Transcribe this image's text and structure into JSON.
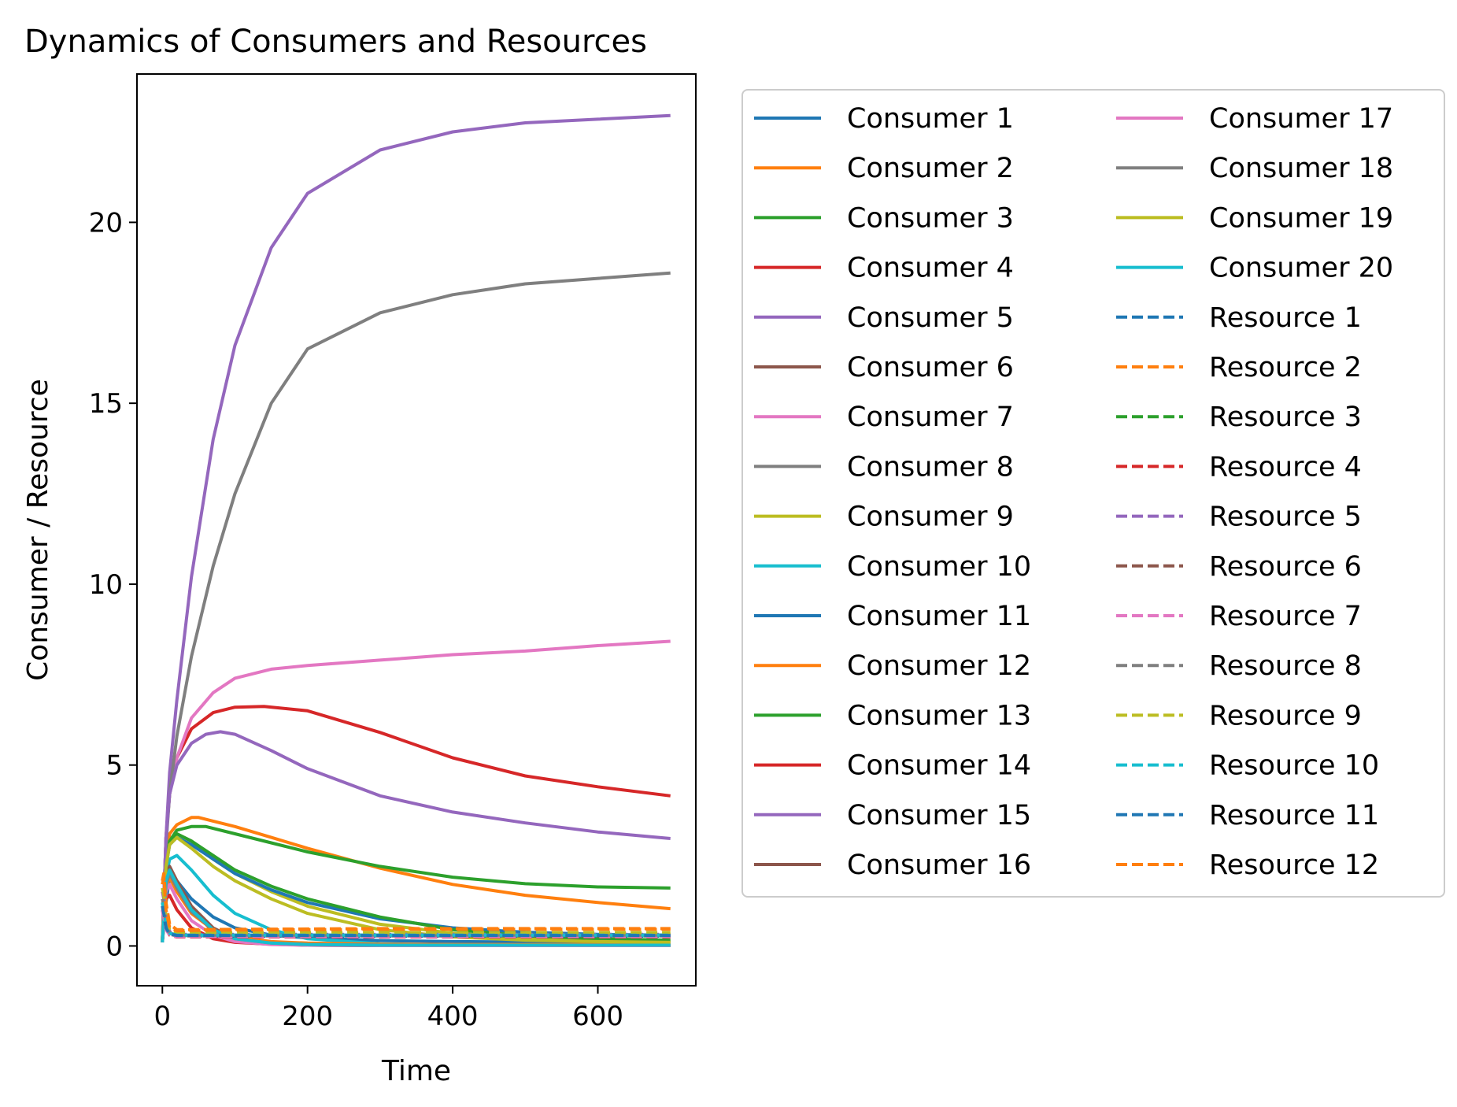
{
  "chart_data": {
    "type": "line",
    "title": "Dynamics of Consumers and Resources",
    "xlabel": "Time",
    "ylabel": "Consumer / Resource",
    "xlim": [
      -35,
      735
    ],
    "ylim": [
      -1.1,
      24.1
    ],
    "xticks": [
      0,
      200,
      400,
      600
    ],
    "yticks": [
      0,
      5,
      10,
      15,
      20
    ],
    "grid": false,
    "legend_position": "outside-right",
    "legend_columns": 2,
    "series": [
      {
        "name": "Consumer 1",
        "color": "#1f77b4",
        "style": "solid",
        "x": [
          0,
          5,
          10,
          20,
          40,
          70,
          100,
          150,
          200,
          300,
          400,
          500,
          600,
          700
        ],
        "y": [
          0.15,
          1.2,
          1.9,
          1.8,
          1.3,
          0.8,
          0.5,
          0.3,
          0.22,
          0.15,
          0.12,
          0.11,
          0.1,
          0.1
        ]
      },
      {
        "name": "Consumer 2",
        "color": "#ff7f0e",
        "style": "solid",
        "x": [
          0,
          5,
          10,
          20,
          40,
          50,
          70,
          100,
          150,
          200,
          300,
          400,
          500,
          600,
          700
        ],
        "y": [
          0.2,
          2.5,
          3.1,
          3.35,
          3.55,
          3.55,
          3.45,
          3.3,
          3.0,
          2.7,
          2.15,
          1.7,
          1.4,
          1.2,
          1.03
        ]
      },
      {
        "name": "Consumer 3",
        "color": "#2ca02c",
        "style": "solid",
        "x": [
          0,
          5,
          10,
          20,
          40,
          60,
          100,
          150,
          200,
          300,
          400,
          500,
          600,
          700
        ],
        "y": [
          0.2,
          2.3,
          2.9,
          3.2,
          3.3,
          3.3,
          3.1,
          2.85,
          2.6,
          2.2,
          1.9,
          1.72,
          1.63,
          1.6
        ]
      },
      {
        "name": "Consumer 4",
        "color": "#d62728",
        "style": "solid",
        "x": [
          0,
          5,
          10,
          20,
          40,
          70,
          100,
          140,
          200,
          300,
          400,
          500,
          600,
          700
        ],
        "y": [
          0.2,
          3.0,
          4.2,
          5.2,
          6.0,
          6.45,
          6.6,
          6.62,
          6.5,
          5.9,
          5.2,
          4.7,
          4.4,
          4.15
        ]
      },
      {
        "name": "Consumer 5",
        "color": "#9467bd",
        "style": "solid",
        "x": [
          0,
          5,
          10,
          20,
          40,
          70,
          100,
          150,
          200,
          300,
          400,
          500,
          600,
          700
        ],
        "y": [
          0.2,
          3.0,
          4.8,
          6.8,
          10.2,
          14.0,
          16.6,
          19.3,
          20.8,
          22.0,
          22.5,
          22.75,
          22.85,
          22.95
        ]
      },
      {
        "name": "Consumer 6",
        "color": "#8c564b",
        "style": "solid",
        "x": [
          0,
          5,
          10,
          20,
          40,
          70,
          100,
          150,
          200,
          300,
          400,
          500,
          600,
          700
        ],
        "y": [
          0.1,
          1.8,
          2.1,
          1.7,
          1.0,
          0.4,
          0.15,
          0.05,
          0.02,
          0.01,
          0.01,
          0.01,
          0.01,
          0.01
        ]
      },
      {
        "name": "Consumer 7",
        "color": "#e377c2",
        "style": "solid",
        "x": [
          0,
          5,
          10,
          20,
          40,
          70,
          100,
          150,
          200,
          300,
          400,
          500,
          600,
          700
        ],
        "y": [
          0.15,
          3.0,
          4.2,
          5.2,
          6.3,
          7.0,
          7.4,
          7.65,
          7.75,
          7.9,
          8.05,
          8.15,
          8.3,
          8.42
        ]
      },
      {
        "name": "Consumer 8",
        "color": "#7f7f7f",
        "style": "solid",
        "x": [
          0,
          5,
          10,
          20,
          40,
          70,
          100,
          150,
          200,
          300,
          400,
          500,
          600,
          700
        ],
        "y": [
          0.15,
          2.8,
          4.2,
          5.8,
          8.0,
          10.5,
          12.5,
          15.0,
          16.5,
          17.5,
          18.0,
          18.3,
          18.45,
          18.6
        ]
      },
      {
        "name": "Consumer 9",
        "color": "#bcbd22",
        "style": "solid",
        "x": [
          0,
          5,
          10,
          20,
          40,
          70,
          100,
          150,
          200,
          300,
          400,
          500,
          600,
          700
        ],
        "y": [
          0.15,
          2.3,
          2.9,
          3.1,
          2.9,
          2.4,
          2.0,
          1.5,
          1.1,
          0.6,
          0.35,
          0.22,
          0.16,
          0.13
        ]
      },
      {
        "name": "Consumer 10",
        "color": "#17becf",
        "style": "solid",
        "x": [
          0,
          5,
          10,
          20,
          40,
          70,
          100,
          150,
          200,
          300,
          400,
          500,
          600,
          700
        ],
        "y": [
          0.1,
          1.9,
          2.4,
          2.5,
          2.1,
          1.4,
          0.9,
          0.45,
          0.2,
          0.06,
          0.03,
          0.02,
          0.02,
          0.02
        ]
      },
      {
        "name": "Consumer 11",
        "color": "#1f77b4",
        "style": "solid",
        "x": [
          0,
          5,
          10,
          20,
          40,
          70,
          100,
          150,
          200,
          300,
          400,
          500,
          600,
          700
        ],
        "y": [
          0.15,
          2.2,
          2.8,
          3.0,
          2.8,
          2.4,
          2.0,
          1.55,
          1.2,
          0.75,
          0.5,
          0.38,
          0.32,
          0.3
        ]
      },
      {
        "name": "Consumer 12",
        "color": "#ff7f0e",
        "style": "solid",
        "x": [
          0,
          5,
          10,
          20,
          40,
          70,
          100,
          150,
          200,
          300,
          400,
          500,
          600,
          700
        ],
        "y": [
          0.1,
          1.6,
          1.9,
          1.5,
          0.9,
          0.45,
          0.25,
          0.12,
          0.08,
          0.05,
          0.04,
          0.04,
          0.04,
          0.04
        ]
      },
      {
        "name": "Consumer 13",
        "color": "#2ca02c",
        "style": "solid",
        "x": [
          0,
          5,
          10,
          20,
          40,
          70,
          100,
          150,
          200,
          300,
          400,
          500,
          600,
          700
        ],
        "y": [
          0.15,
          2.3,
          2.9,
          3.1,
          2.9,
          2.5,
          2.1,
          1.65,
          1.3,
          0.8,
          0.45,
          0.28,
          0.2,
          0.16
        ]
      },
      {
        "name": "Consumer 14",
        "color": "#d62728",
        "style": "solid",
        "x": [
          0,
          5,
          10,
          20,
          40,
          70,
          100,
          150,
          200,
          300,
          400,
          500,
          600,
          700
        ],
        "y": [
          0.1,
          1.3,
          1.4,
          1.0,
          0.5,
          0.2,
          0.1,
          0.05,
          0.03,
          0.02,
          0.02,
          0.02,
          0.02,
          0.02
        ]
      },
      {
        "name": "Consumer 15",
        "color": "#9467bd",
        "style": "solid",
        "x": [
          0,
          5,
          10,
          20,
          40,
          60,
          80,
          100,
          150,
          200,
          300,
          400,
          500,
          600,
          700
        ],
        "y": [
          0.2,
          3.0,
          4.2,
          5.0,
          5.6,
          5.85,
          5.92,
          5.85,
          5.4,
          4.9,
          4.15,
          3.7,
          3.4,
          3.15,
          2.97
        ]
      },
      {
        "name": "Consumer 16",
        "color": "#8c564b",
        "style": "solid",
        "x": [
          0,
          5,
          10,
          20,
          40,
          70,
          100,
          150,
          200,
          300,
          400,
          500,
          600,
          700
        ],
        "y": [
          0.1,
          1.9,
          2.2,
          1.8,
          1.1,
          0.5,
          0.2,
          0.06,
          0.02,
          0.01,
          0.01,
          0.01,
          0.01,
          0.01
        ]
      },
      {
        "name": "Consumer 17",
        "color": "#e377c2",
        "style": "solid",
        "x": [
          0,
          5,
          10,
          20,
          40,
          70,
          100,
          150,
          200,
          300,
          400,
          500,
          600,
          700
        ],
        "y": [
          0.1,
          1.5,
          1.7,
          1.3,
          0.7,
          0.3,
          0.12,
          0.04,
          0.02,
          0.01,
          0.01,
          0.01,
          0.01,
          0.01
        ]
      },
      {
        "name": "Consumer 18",
        "color": "#7f7f7f",
        "style": "solid",
        "x": [
          0,
          5,
          10,
          20,
          40,
          70,
          100,
          150,
          200,
          300,
          400,
          500,
          600,
          700
        ],
        "y": [
          0.1,
          1.7,
          2.0,
          1.6,
          0.95,
          0.45,
          0.2,
          0.08,
          0.04,
          0.02,
          0.02,
          0.02,
          0.02,
          0.02
        ]
      },
      {
        "name": "Consumer 19",
        "color": "#bcbd22",
        "style": "solid",
        "x": [
          0,
          5,
          10,
          20,
          40,
          70,
          100,
          150,
          200,
          300,
          400,
          500,
          600,
          700
        ],
        "y": [
          0.15,
          2.2,
          2.8,
          3.0,
          2.7,
          2.2,
          1.8,
          1.3,
          0.9,
          0.45,
          0.25,
          0.16,
          0.12,
          0.1
        ]
      },
      {
        "name": "Consumer 20",
        "color": "#17becf",
        "style": "solid",
        "x": [
          0,
          5,
          10,
          20,
          40,
          70,
          100,
          150,
          200,
          300,
          400,
          500,
          600,
          700
        ],
        "y": [
          0.1,
          1.8,
          2.1,
          1.7,
          1.0,
          0.45,
          0.2,
          0.08,
          0.04,
          0.02,
          0.02,
          0.02,
          0.02,
          0.02
        ]
      },
      {
        "name": "Resource 1",
        "color": "#1f77b4",
        "style": "dashed",
        "x": [
          0,
          2,
          5,
          10,
          20,
          40,
          100,
          200,
          300,
          400,
          500,
          600,
          700
        ],
        "y": [
          1.0,
          0.8,
          0.5,
          0.35,
          0.3,
          0.28,
          0.27,
          0.27,
          0.27,
          0.27,
          0.27,
          0.27,
          0.27
        ]
      },
      {
        "name": "Resource 2",
        "color": "#ff7f0e",
        "style": "dashed",
        "x": [
          0,
          2,
          5,
          10,
          20,
          40,
          100,
          200,
          300,
          400,
          500,
          600,
          700
        ],
        "y": [
          1.8,
          2.0,
          1.2,
          0.6,
          0.45,
          0.45,
          0.46,
          0.47,
          0.48,
          0.48,
          0.48,
          0.48,
          0.48
        ]
      },
      {
        "name": "Resource 3",
        "color": "#2ca02c",
        "style": "dashed",
        "x": [
          0,
          2,
          5,
          10,
          20,
          40,
          100,
          200,
          300,
          400,
          500,
          600,
          700
        ],
        "y": [
          1.2,
          1.0,
          0.6,
          0.35,
          0.3,
          0.3,
          0.3,
          0.3,
          0.3,
          0.3,
          0.3,
          0.3,
          0.3
        ]
      },
      {
        "name": "Resource 4",
        "color": "#d62728",
        "style": "dashed",
        "x": [
          0,
          2,
          5,
          10,
          20,
          40,
          100,
          200,
          300,
          400,
          500,
          600,
          700
        ],
        "y": [
          1.0,
          0.8,
          0.5,
          0.3,
          0.25,
          0.25,
          0.25,
          0.25,
          0.25,
          0.25,
          0.25,
          0.25,
          0.25
        ]
      },
      {
        "name": "Resource 5",
        "color": "#9467bd",
        "style": "dashed",
        "x": [
          0,
          2,
          5,
          10,
          20,
          40,
          100,
          200,
          300,
          400,
          500,
          600,
          700
        ],
        "y": [
          1.5,
          1.3,
          0.7,
          0.4,
          0.32,
          0.32,
          0.32,
          0.32,
          0.32,
          0.32,
          0.32,
          0.32,
          0.32
        ]
      },
      {
        "name": "Resource 6",
        "color": "#8c564b",
        "style": "dashed",
        "x": [
          0,
          2,
          5,
          10,
          20,
          40,
          100,
          200,
          300,
          400,
          500,
          600,
          700
        ],
        "y": [
          1.1,
          0.9,
          0.5,
          0.32,
          0.28,
          0.28,
          0.28,
          0.28,
          0.28,
          0.28,
          0.28,
          0.28,
          0.28
        ]
      },
      {
        "name": "Resource 7",
        "color": "#e377c2",
        "style": "dashed",
        "x": [
          0,
          2,
          5,
          10,
          20,
          40,
          100,
          200,
          300,
          400,
          500,
          600,
          700
        ],
        "y": [
          1.0,
          0.8,
          0.45,
          0.3,
          0.26,
          0.26,
          0.26,
          0.26,
          0.26,
          0.26,
          0.26,
          0.26,
          0.26
        ]
      },
      {
        "name": "Resource 8",
        "color": "#7f7f7f",
        "style": "dashed",
        "x": [
          0,
          2,
          5,
          10,
          20,
          40,
          100,
          200,
          300,
          400,
          500,
          600,
          700
        ],
        "y": [
          1.3,
          1.1,
          0.6,
          0.36,
          0.3,
          0.3,
          0.3,
          0.3,
          0.3,
          0.3,
          0.3,
          0.3,
          0.3
        ]
      },
      {
        "name": "Resource 9",
        "color": "#bcbd22",
        "style": "dashed",
        "x": [
          0,
          2,
          5,
          10,
          20,
          40,
          100,
          200,
          300,
          400,
          500,
          600,
          700
        ],
        "y": [
          1.6,
          1.4,
          0.8,
          0.45,
          0.38,
          0.37,
          0.37,
          0.37,
          0.37,
          0.37,
          0.37,
          0.37,
          0.37
        ]
      },
      {
        "name": "Resource 10",
        "color": "#17becf",
        "style": "dashed",
        "x": [
          0,
          2,
          5,
          10,
          20,
          40,
          100,
          200,
          300,
          400,
          500,
          600,
          700
        ],
        "y": [
          1.2,
          1.0,
          0.55,
          0.35,
          0.3,
          0.3,
          0.3,
          0.3,
          0.3,
          0.3,
          0.3,
          0.3,
          0.3
        ]
      },
      {
        "name": "Resource 11",
        "color": "#1f77b4",
        "style": "dashed",
        "x": [
          0,
          2,
          5,
          10,
          20,
          40,
          100,
          200,
          300,
          400,
          500,
          600,
          700
        ],
        "y": [
          1.1,
          0.9,
          0.5,
          0.33,
          0.29,
          0.29,
          0.29,
          0.29,
          0.29,
          0.29,
          0.29,
          0.29,
          0.29
        ]
      },
      {
        "name": "Resource 12",
        "color": "#ff7f0e",
        "style": "dashed",
        "x": [
          0,
          2,
          5,
          10,
          20,
          40,
          100,
          200,
          300,
          400,
          500,
          600,
          700
        ],
        "y": [
          1.7,
          1.9,
          1.0,
          0.5,
          0.42,
          0.43,
          0.44,
          0.45,
          0.46,
          0.46,
          0.46,
          0.46,
          0.46
        ]
      }
    ]
  }
}
